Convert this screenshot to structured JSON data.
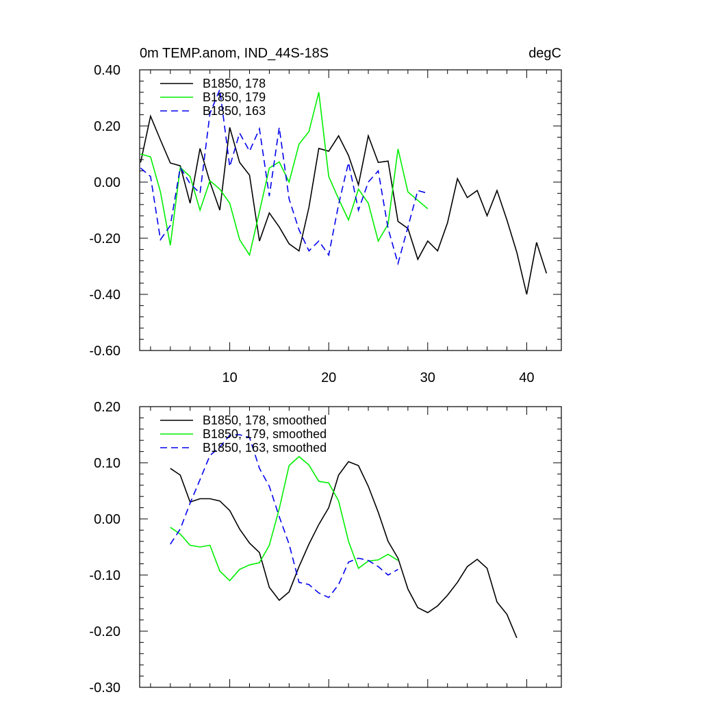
{
  "chart_data": [
    {
      "type": "line",
      "title_left": "0m TEMP.anom, IND_44S-18S",
      "title_right": "degC",
      "ylim": [
        -0.6,
        0.4
      ],
      "yticks": [
        "0.40",
        "0.20",
        "0.00",
        "-0.20",
        "-0.40",
        "-0.60"
      ],
      "ytick_values": [
        0.4,
        0.2,
        0.0,
        -0.2,
        -0.4,
        -0.6
      ],
      "xlim": [
        0.9,
        43.5
      ],
      "xticks": [
        "10",
        "20",
        "30",
        "40"
      ],
      "xtick_values": [
        10,
        20,
        30,
        40
      ],
      "legend": "top-left",
      "series": [
        {
          "name": "B1850, 178",
          "color": "#000000",
          "dash": "solid",
          "x": [
            1,
            2,
            3,
            4,
            5,
            6,
            7,
            8,
            9,
            10,
            11,
            12,
            13,
            14,
            15,
            16,
            17,
            18,
            19,
            20,
            21,
            22,
            23,
            24,
            25,
            26,
            27,
            28,
            29,
            30,
            31,
            32,
            33,
            34,
            35,
            36,
            37,
            38,
            39,
            40,
            41,
            42
          ],
          "values": [
            0.07,
            0.235,
            0.15,
            0.068,
            0.058,
            -0.075,
            0.12,
            0.0,
            -0.1,
            0.195,
            0.07,
            0.025,
            -0.21,
            -0.11,
            -0.16,
            -0.22,
            -0.245,
            -0.09,
            0.12,
            0.11,
            0.165,
            0.095,
            -0.01,
            0.165,
            0.07,
            0.075,
            -0.14,
            -0.165,
            -0.275,
            -0.21,
            -0.245,
            -0.145,
            0.012,
            -0.055,
            -0.03,
            -0.12,
            -0.03,
            -0.135,
            -0.25,
            -0.4,
            -0.215,
            -0.325
          ]
        },
        {
          "name": "B1850, 179",
          "color": "#00ee00",
          "dash": "solid",
          "x": [
            1,
            2,
            3,
            4,
            5,
            6,
            7,
            8,
            9,
            10,
            11,
            12,
            13,
            14,
            15,
            16,
            17,
            18,
            19,
            20,
            21,
            22,
            23,
            24,
            25,
            26,
            27,
            28,
            29,
            30
          ],
          "values": [
            0.1,
            0.09,
            -0.035,
            -0.225,
            0.052,
            0.02,
            -0.1,
            0.005,
            -0.025,
            -0.075,
            -0.205,
            -0.26,
            -0.105,
            0.05,
            0.072,
            0.0,
            0.135,
            0.18,
            0.32,
            0.02,
            -0.06,
            -0.135,
            -0.025,
            -0.075,
            -0.21,
            -0.15,
            0.118,
            -0.035,
            -0.065,
            -0.095
          ]
        },
        {
          "name": "B1850, 163",
          "color": "#0000ee",
          "dash": "dashed",
          "x": [
            1,
            2,
            3,
            4,
            5,
            6,
            7,
            8,
            9,
            10,
            11,
            12,
            13,
            14,
            15,
            16,
            17,
            18,
            19,
            20,
            21,
            22,
            23,
            24,
            25,
            26,
            27,
            28,
            29,
            30
          ],
          "values": [
            0.05,
            0.02,
            -0.205,
            -0.155,
            0.052,
            -0.005,
            -0.04,
            0.245,
            0.33,
            0.055,
            0.175,
            0.11,
            0.19,
            -0.05,
            0.195,
            -0.06,
            -0.17,
            -0.245,
            -0.21,
            -0.26,
            -0.08,
            0.07,
            -0.1,
            0.0,
            0.04,
            -0.165,
            -0.29,
            -0.16,
            -0.03,
            -0.04
          ]
        }
      ]
    },
    {
      "type": "line",
      "ylim": [
        -0.3,
        0.2
      ],
      "yticks": [
        "0.20",
        "0.10",
        "0.00",
        "-0.10",
        "-0.20",
        "-0.30"
      ],
      "ytick_values": [
        0.2,
        0.1,
        0.0,
        -0.1,
        -0.2,
        -0.3
      ],
      "xlim": [
        0.9,
        43.5
      ],
      "xtick_values": [
        10,
        20,
        30,
        40
      ],
      "legend": "top-left",
      "series": [
        {
          "name": "B1850, 178, smoothed",
          "color": "#000000",
          "dash": "solid",
          "x": [
            4,
            5,
            6,
            7,
            8,
            9,
            10,
            11,
            12,
            13,
            14,
            15,
            16,
            17,
            18,
            19,
            20,
            21,
            22,
            23,
            24,
            25,
            26,
            27,
            28,
            29,
            30,
            31,
            32,
            33,
            34,
            35,
            36,
            37,
            38,
            39
          ],
          "values": [
            0.09,
            0.078,
            0.03,
            0.036,
            0.036,
            0.032,
            0.015,
            -0.018,
            -0.043,
            -0.06,
            -0.122,
            -0.145,
            -0.13,
            -0.085,
            -0.045,
            -0.01,
            0.02,
            0.078,
            0.102,
            0.095,
            0.058,
            0.012,
            -0.04,
            -0.07,
            -0.125,
            -0.158,
            -0.167,
            -0.155,
            -0.136,
            -0.113,
            -0.085,
            -0.072,
            -0.088,
            -0.148,
            -0.17,
            -0.212
          ]
        },
        {
          "name": "B1850, 179, smoothed",
          "color": "#00ee00",
          "dash": "solid",
          "x": [
            4,
            5,
            6,
            7,
            8,
            9,
            10,
            11,
            12,
            13,
            14,
            15,
            16,
            17,
            18,
            19,
            20,
            21,
            22,
            23,
            24,
            25,
            26,
            27
          ],
          "values": [
            -0.015,
            -0.027,
            -0.047,
            -0.05,
            -0.047,
            -0.093,
            -0.11,
            -0.09,
            -0.082,
            -0.078,
            -0.047,
            0.018,
            0.095,
            0.111,
            0.096,
            0.067,
            0.064,
            0.032,
            -0.04,
            -0.088,
            -0.075,
            -0.073,
            -0.063,
            -0.074
          ]
        },
        {
          "name": "B1850, 163, smoothed",
          "color": "#0000ee",
          "dash": "dashed",
          "x": [
            4,
            5,
            6,
            7,
            8,
            9,
            10,
            11,
            12,
            13,
            14,
            15,
            16,
            17,
            18,
            19,
            20,
            21,
            22,
            23,
            24,
            25,
            26,
            27
          ],
          "values": [
            -0.045,
            -0.018,
            0.028,
            0.07,
            0.113,
            0.128,
            0.149,
            0.15,
            0.145,
            0.09,
            0.058,
            0.004,
            -0.045,
            -0.113,
            -0.117,
            -0.132,
            -0.14,
            -0.117,
            -0.077,
            -0.07,
            -0.074,
            -0.085,
            -0.1,
            -0.09
          ]
        }
      ]
    }
  ]
}
